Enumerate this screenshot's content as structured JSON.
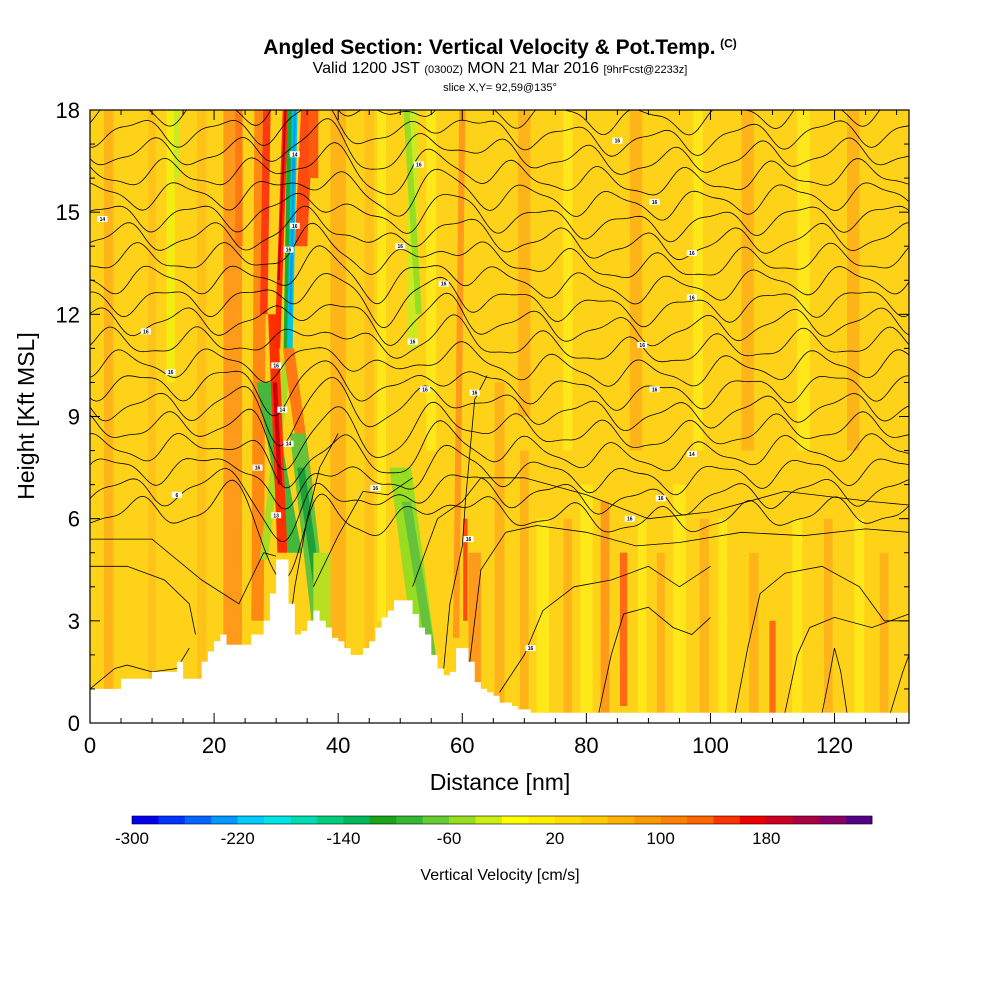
{
  "title": {
    "main": "Angled Section: Vertical Velocity & Pot.Temp.",
    "main_suffix": "(C)",
    "valid_prefix": "Valid 1200 JST",
    "valid_utc": "(0300Z)",
    "valid_date": "MON 21 Mar 2016",
    "valid_fcst": "[9hrFcst@2233z]",
    "slice": "slice X,Y= 92,59@135°"
  },
  "chart_data": {
    "type": "heatmap",
    "title": "Angled Section: Vertical Velocity & Pot.Temp.",
    "xlabel": "Distance [nm]",
    "ylabel": "Height [Kft MSL]",
    "xlim": [
      0,
      132
    ],
    "ylim": [
      0,
      18
    ],
    "x_ticks": [
      "0",
      "20",
      "40",
      "60",
      "80",
      "100",
      "120"
    ],
    "y_ticks": [
      "0",
      "3",
      "6",
      "9",
      "12",
      "15",
      "18"
    ],
    "terrain": {
      "x": [
        0,
        4,
        5,
        9,
        10,
        13,
        14,
        15,
        17,
        18,
        19,
        20,
        21,
        22,
        25,
        26,
        28,
        29,
        30,
        31,
        32,
        33,
        34,
        35,
        36,
        37,
        38,
        39,
        40,
        41,
        42,
        43,
        44,
        45,
        46,
        47,
        48,
        49,
        50,
        51,
        52,
        53,
        54,
        55,
        56,
        57,
        58,
        59,
        60,
        61,
        62,
        63,
        64,
        65,
        66,
        67,
        68,
        69,
        70,
        71,
        72,
        132
      ],
      "height": [
        1.0,
        1.0,
        1.3,
        1.3,
        1.5,
        1.5,
        1.8,
        1.3,
        1.3,
        1.8,
        2.1,
        2.4,
        2.6,
        2.3,
        2.3,
        2.6,
        3.0,
        3.8,
        4.8,
        4.8,
        3.5,
        2.6,
        2.7,
        3.0,
        3.3,
        3.0,
        2.8,
        2.5,
        2.4,
        2.2,
        2.0,
        2.0,
        2.2,
        2.4,
        2.8,
        3.1,
        3.3,
        3.6,
        3.6,
        3.6,
        3.2,
        2.8,
        2.6,
        2.0,
        1.6,
        1.4,
        1.5,
        2.2,
        2.2,
        1.8,
        1.2,
        1.0,
        0.9,
        0.8,
        0.6,
        0.6,
        0.5,
        0.4,
        0.4,
        0.3,
        0.3,
        0.3
      ]
    },
    "theta_labels": [
      {
        "text": "14",
        "x": 2,
        "y": 14.8
      },
      {
        "text": "16",
        "x": 9,
        "y": 11.5
      },
      {
        "text": "16",
        "x": 13,
        "y": 10.3
      },
      {
        "text": "6",
        "x": 14,
        "y": 6.7
      },
      {
        "text": "14",
        "x": 33,
        "y": 16.7
      },
      {
        "text": "16",
        "x": 33,
        "y": 14.6
      },
      {
        "text": "16",
        "x": 32,
        "y": 13.9
      },
      {
        "text": "16",
        "x": 30,
        "y": 10.5
      },
      {
        "text": "14",
        "x": 31,
        "y": 9.2
      },
      {
        "text": "14",
        "x": 32,
        "y": 8.2
      },
      {
        "text": "16",
        "x": 27,
        "y": 7.5
      },
      {
        "text": "13",
        "x": 30,
        "y": 6.1
      },
      {
        "text": "16",
        "x": 50,
        "y": 14.0
      },
      {
        "text": "16",
        "x": 53,
        "y": 16.4
      },
      {
        "text": "16",
        "x": 57,
        "y": 12.9
      },
      {
        "text": "16",
        "x": 52,
        "y": 11.2
      },
      {
        "text": "16",
        "x": 54,
        "y": 9.8
      },
      {
        "text": "16",
        "x": 46,
        "y": 6.9
      },
      {
        "text": "16",
        "x": 61,
        "y": 5.4
      },
      {
        "text": "16",
        "x": 62,
        "y": 9.7
      },
      {
        "text": "16",
        "x": 71,
        "y": 2.2
      },
      {
        "text": "16",
        "x": 85,
        "y": 17.1
      },
      {
        "text": "16",
        "x": 91,
        "y": 15.3
      },
      {
        "text": "16",
        "x": 97,
        "y": 13.8
      },
      {
        "text": "16",
        "x": 97,
        "y": 12.5
      },
      {
        "text": "16",
        "x": 89,
        "y": 11.1
      },
      {
        "text": "16",
        "x": 91,
        "y": 9.8
      },
      {
        "text": "14",
        "x": 97,
        "y": 7.9
      },
      {
        "text": "16",
        "x": 92,
        "y": 6.6
      },
      {
        "text": "16",
        "x": 87,
        "y": 6.0
      }
    ],
    "colorbar": {
      "label": "Vertical Velocity [cm/s]",
      "tick_labels": [
        "-300",
        "-220",
        "-140",
        "-60",
        "20",
        "100",
        "180"
      ],
      "colors": [
        "#0000ee",
        "#0033ff",
        "#0066ff",
        "#0099ff",
        "#00ccff",
        "#00e6e6",
        "#00dbb0",
        "#00cc7a",
        "#00b85c",
        "#1aa41a",
        "#33b833",
        "#66cc33",
        "#99dd22",
        "#ccee11",
        "#ffff00",
        "#ffee00",
        "#ffdd00",
        "#ffcc00",
        "#ffb300",
        "#ff9900",
        "#ff8000",
        "#ff6600",
        "#ff3300",
        "#ee0000",
        "#cc0022",
        "#aa0044",
        "#880066",
        "#550088"
      ]
    },
    "grid": false
  }
}
